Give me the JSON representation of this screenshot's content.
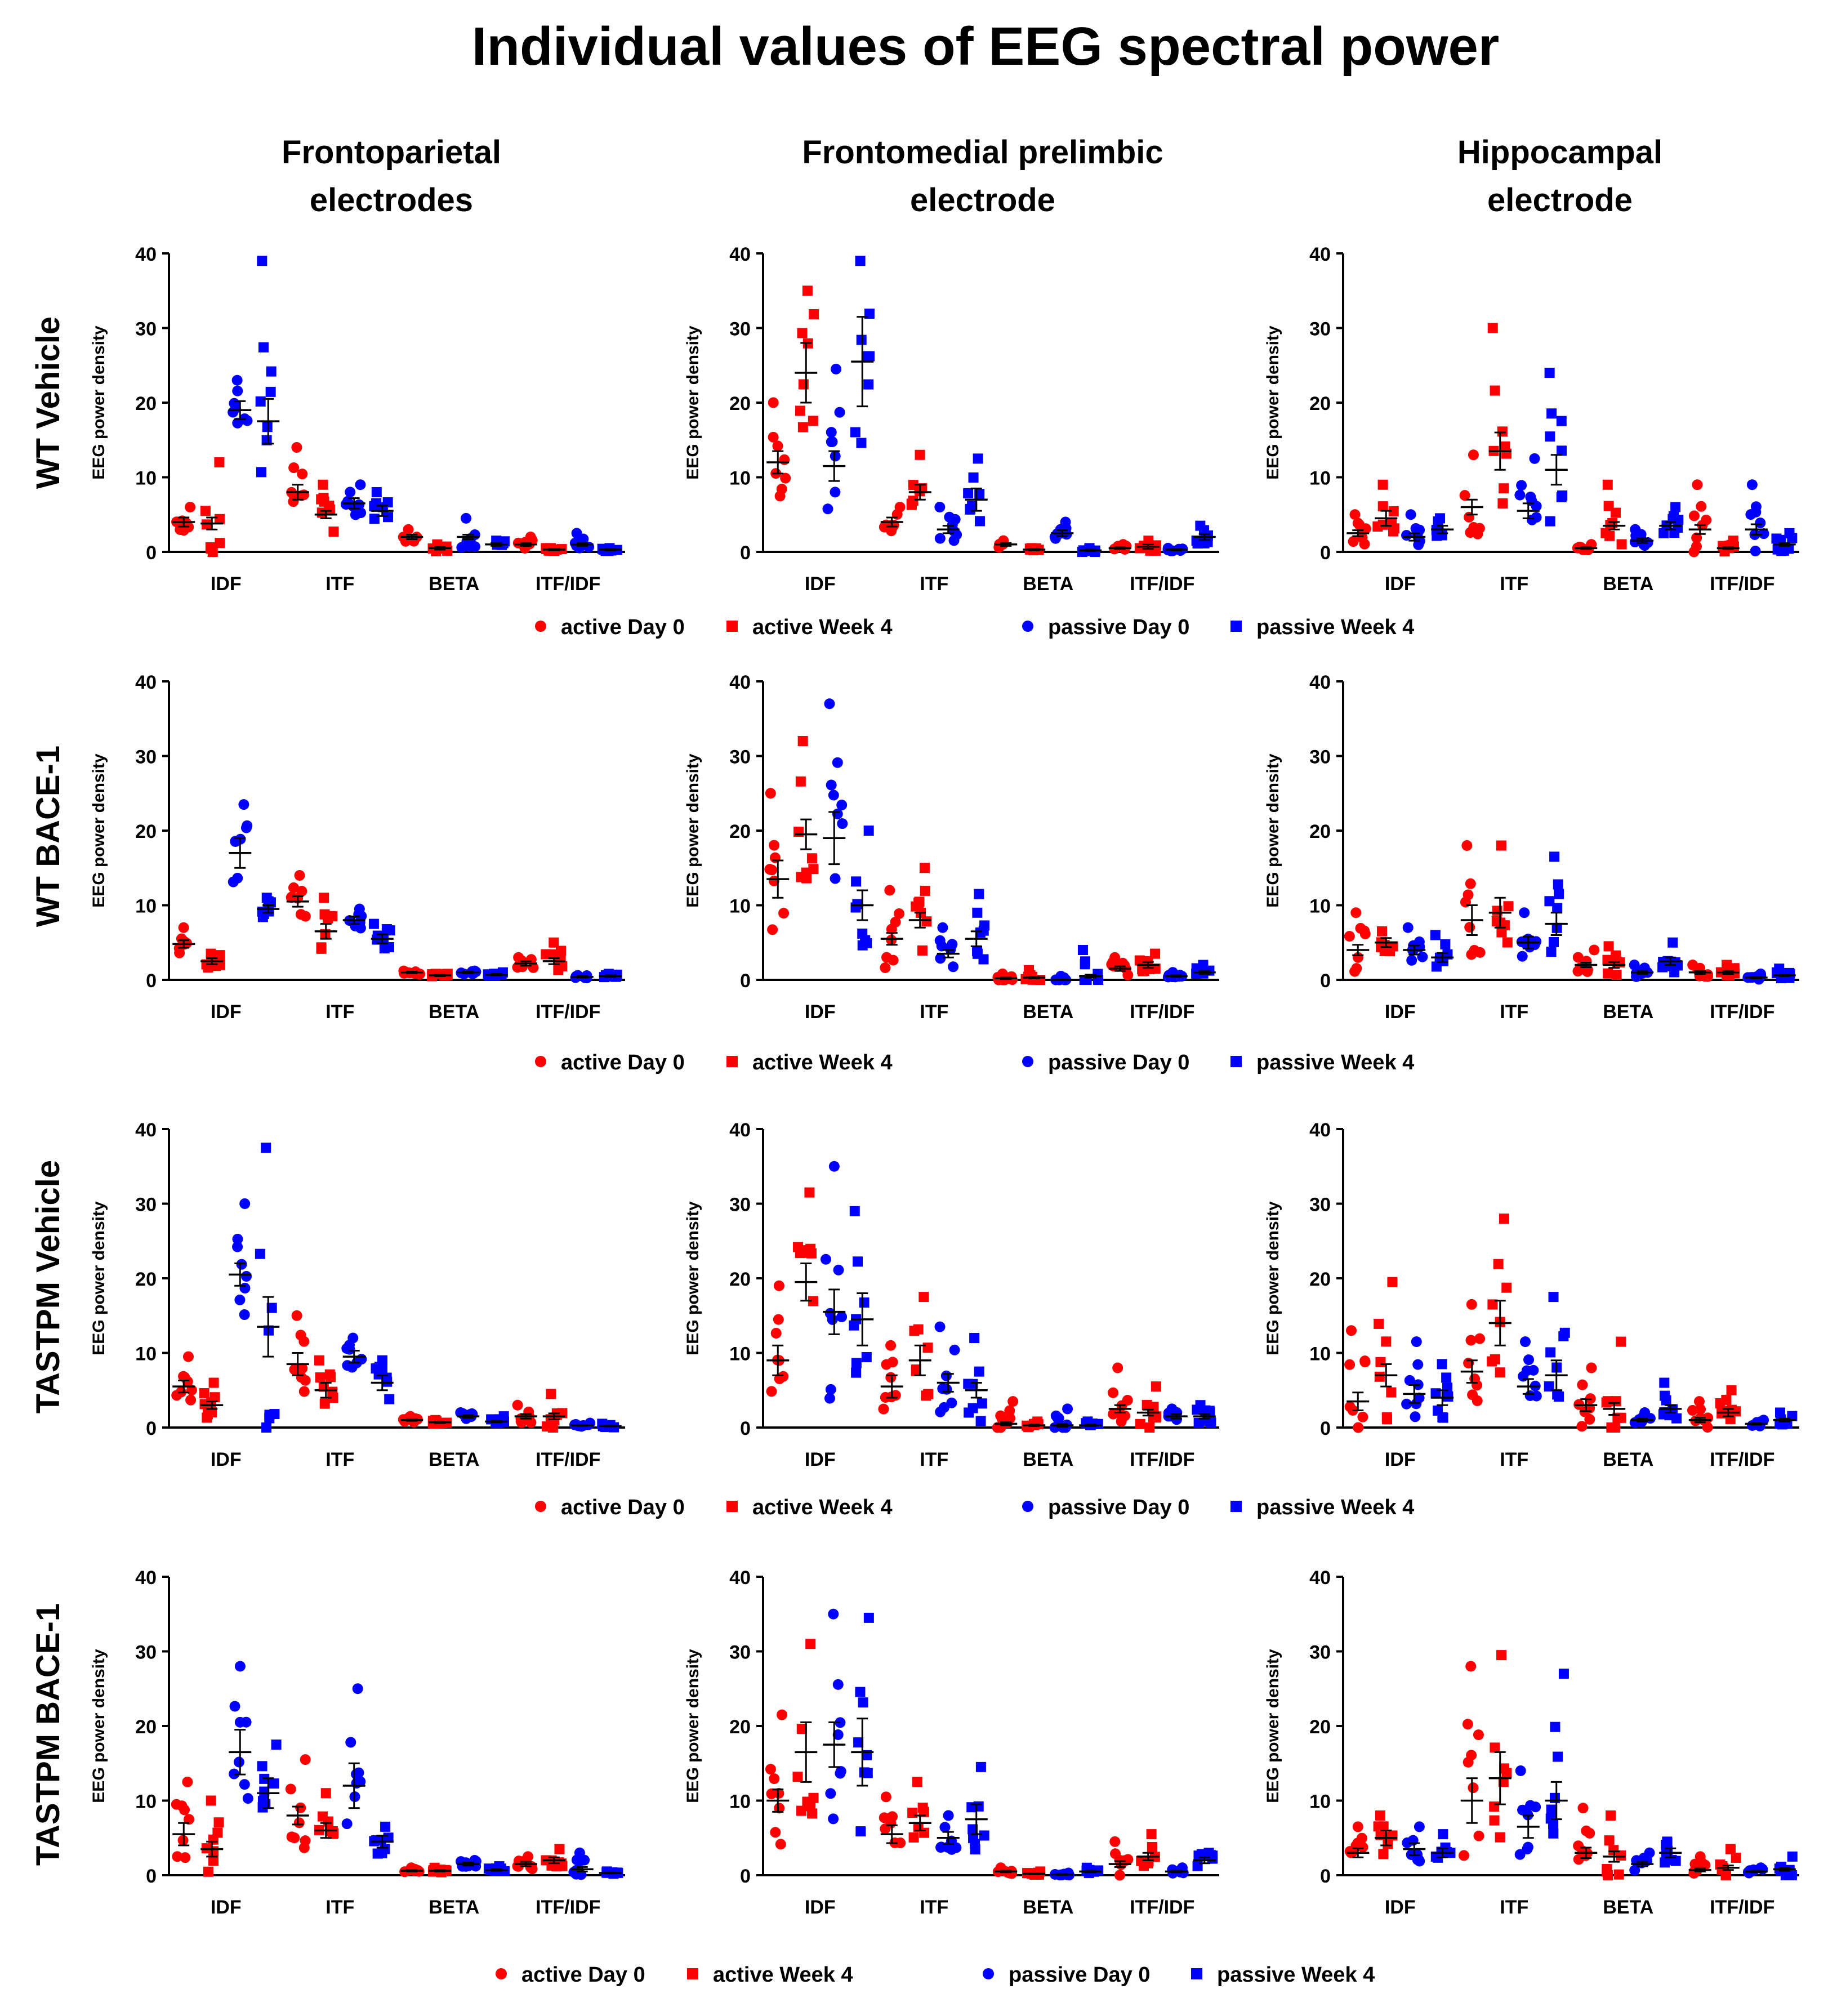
{
  "title": "Individual values of EEG spectral power",
  "colors": {
    "active": "#ff0000",
    "passive": "#0000ff",
    "mean_bar": "#000000",
    "axis": "#000000"
  },
  "column_headers": [
    {
      "line1": "Frontoparietal",
      "line2": "electrodes"
    },
    {
      "line1": "Frontomedial prelimbic",
      "line2": "electrode"
    },
    {
      "line1": "Hippocampal",
      "line2": "electrode"
    }
  ],
  "row_labels": [
    "WT Vehicle",
    "WT BACE-1",
    "TASTPM Vehicle",
    "TASTPM BACE-1"
  ],
  "legend": {
    "items": [
      {
        "label": "active Day 0",
        "marker": "circle",
        "color": "#ff0000"
      },
      {
        "label": "active Week 4",
        "marker": "square",
        "color": "#ff0000"
      },
      {
        "label": "passive Day 0",
        "marker": "circle",
        "color": "#0000ff"
      },
      {
        "label": "passive Week 4",
        "marker": "square",
        "color": "#0000ff"
      }
    ]
  },
  "chart_data": {
    "type": "scatter",
    "subtype": "dot-plot with mean ± SEM",
    "ylabel": "EEG power density",
    "ylim": [
      0,
      40
    ],
    "yticks": [
      0,
      10,
      20,
      30,
      40
    ],
    "categories": [
      "IDF",
      "ITF",
      "BETA",
      "ITF/IDF"
    ],
    "groups": [
      "active Day 0",
      "active Week 4",
      "passive Day 0",
      "passive Week 4"
    ],
    "panels": [
      {
        "row": "WT Vehicle",
        "col": "Frontoparietal electrodes",
        "means": [
          [
            4,
            3.8,
            19,
            17.5
          ],
          [
            8,
            5,
            6.5,
            5.5
          ],
          [
            2,
            0.5,
            2,
            1
          ],
          [
            1,
            0.3,
            1,
            0.3
          ]
        ],
        "sem": [
          [
            0.6,
            0.8,
            1.2,
            3
          ],
          [
            1,
            0.5,
            0.7,
            0.7
          ],
          [
            0.3,
            0.2,
            0.3,
            0.2
          ],
          [
            0.2,
            0.1,
            0.2,
            0.1
          ]
        ],
        "max": [
          [
            6,
            12,
            23,
            39
          ],
          [
            14,
            9,
            9,
            8
          ],
          [
            3,
            1,
            4.5,
            1.5
          ],
          [
            2,
            0.5,
            2.5,
            0.5
          ]
        ]
      },
      {
        "row": "WT Vehicle",
        "col": "Frontomedial prelimbic electrode",
        "means": [
          [
            12,
            24,
            11.5,
            25.5
          ],
          [
            4,
            8,
            3,
            7
          ],
          [
            1,
            0.3,
            2.5,
            0.2
          ],
          [
            0.5,
            0.7,
            0.3,
            2
          ]
        ],
        "sem": [
          [
            1.5,
            4,
            2,
            6
          ],
          [
            0.6,
            1,
            0.5,
            1.5
          ],
          [
            0.2,
            0.1,
            0.4,
            0.1
          ],
          [
            0.1,
            0.3,
            0.1,
            0.4
          ]
        ],
        "max": [
          [
            20,
            35,
            24.5,
            39
          ],
          [
            6,
            13,
            6,
            12.5
          ],
          [
            1.5,
            0.5,
            4,
            0.5
          ],
          [
            1,
            1.5,
            0.5,
            3.5
          ]
        ]
      },
      {
        "row": "WT Vehicle",
        "col": "Hippocampal electrode",
        "means": [
          [
            2.5,
            4.5,
            2,
            3
          ],
          [
            6,
            13.5,
            5.5,
            11
          ],
          [
            0.5,
            3.5,
            1.5,
            3.5
          ],
          [
            3,
            0.5,
            3,
            1
          ]
        ],
        "sem": [
          [
            0.4,
            1,
            0.5,
            0.5
          ],
          [
            1,
            2.5,
            1,
            2
          ],
          [
            0.1,
            0.5,
            0.3,
            0.5
          ],
          [
            0.6,
            0.1,
            0.7,
            0.2
          ]
        ],
        "max": [
          [
            5,
            9,
            5,
            4.5
          ],
          [
            13,
            30,
            12.5,
            24
          ],
          [
            1,
            9,
            3,
            6
          ],
          [
            9,
            1.5,
            9,
            2.5
          ]
        ]
      },
      {
        "row": "WT BACE-1",
        "col": "Frontoparietal electrodes",
        "means": [
          [
            4.8,
            2.5,
            17,
            9.5
          ],
          [
            10.5,
            6.5,
            8,
            5.5
          ],
          [
            1,
            0.6,
            1,
            0.7
          ],
          [
            2.2,
            2.5,
            0.4,
            0.5
          ]
        ],
        "sem": [
          [
            0.5,
            0.4,
            2,
            0.5
          ],
          [
            0.7,
            1,
            0.5,
            0.6
          ],
          [
            0.1,
            0.1,
            0.1,
            0.1
          ],
          [
            0.3,
            0.4,
            0.1,
            0.1
          ]
        ],
        "max": [
          [
            7,
            3.5,
            23.5,
            11
          ],
          [
            14,
            11,
            9.5,
            7.5
          ],
          [
            1.2,
            0.8,
            1.2,
            1
          ],
          [
            3,
            5,
            0.6,
            0.8
          ]
        ]
      },
      {
        "row": "WT BACE-1",
        "col": "Frontomedial prelimbic electrode",
        "means": [
          [
            13.5,
            19.5,
            19,
            10
          ],
          [
            5.5,
            8,
            3.5,
            5.5
          ],
          [
            0.2,
            0.3,
            0,
            0.5
          ],
          [
            1.5,
            2,
            0.5,
            1
          ]
        ],
        "sem": [
          [
            2.5,
            2,
            3.5,
            2
          ],
          [
            0.8,
            1,
            0.5,
            1
          ],
          [
            0.1,
            0.1,
            0.05,
            0.2
          ],
          [
            0.3,
            0.4,
            0.1,
            0.2
          ]
        ],
        "max": [
          [
            25,
            32,
            37,
            20
          ],
          [
            12,
            15,
            7,
            11.5
          ],
          [
            0.8,
            1.3,
            0.5,
            4
          ],
          [
            3,
            3.5,
            1,
            2
          ]
        ]
      },
      {
        "row": "WT BACE-1",
        "col": "Hippocampal electrode",
        "means": [
          [
            4,
            5,
            4,
            3
          ],
          [
            8,
            9,
            5,
            7.5
          ],
          [
            2,
            2,
            1,
            2.5
          ],
          [
            1,
            1,
            0.3,
            0.6
          ]
        ],
        "sem": [
          [
            0.7,
            0.6,
            0.6,
            0.6
          ],
          [
            2,
            2,
            0.8,
            1.5
          ],
          [
            0.3,
            0.4,
            0.2,
            0.5
          ],
          [
            0.2,
            0.2,
            0.1,
            0.1
          ]
        ],
        "max": [
          [
            9,
            6.5,
            7,
            6
          ],
          [
            18,
            18,
            9,
            16.5
          ],
          [
            4,
            4.5,
            2,
            5
          ],
          [
            2,
            2,
            0.8,
            1.5
          ]
        ]
      },
      {
        "row": "TASTPM Vehicle",
        "col": "Frontoparietal electrodes",
        "means": [
          [
            5.5,
            3,
            20.5,
            13.5
          ],
          [
            8.5,
            5,
            9.5,
            6
          ],
          [
            1,
            0.7,
            1.5,
            0.8
          ],
          [
            1.5,
            1.5,
            0.3,
            0.2
          ]
        ],
        "sem": [
          [
            0.8,
            0.5,
            1.5,
            4
          ],
          [
            1.5,
            1,
            0.8,
            1
          ],
          [
            0.1,
            0.1,
            0.2,
            0.1
          ],
          [
            0.3,
            0.4,
            0.05,
            0.05
          ]
        ],
        "max": [
          [
            9.5,
            6,
            30,
            37.5
          ],
          [
            15,
            9,
            12,
            9
          ],
          [
            1.5,
            1,
            2,
            1.5
          ],
          [
            3,
            4.5,
            0.6,
            0.5
          ]
        ]
      },
      {
        "row": "TASTPM Vehicle",
        "col": "Frontomedial prelimbic electrode",
        "means": [
          [
            9,
            19.5,
            15.5,
            14.5
          ],
          [
            5.5,
            9,
            6,
            5
          ],
          [
            0.5,
            0.3,
            0.3,
            0.3
          ],
          [
            2.5,
            2,
            1.5,
            1.5
          ]
        ],
        "sem": [
          [
            2,
            2.5,
            3,
            3.5
          ],
          [
            1.5,
            2,
            1.2,
            1
          ],
          [
            0.2,
            0.1,
            0.2,
            0.1
          ],
          [
            0.5,
            0.4,
            0.3,
            0.3
          ]
        ],
        "max": [
          [
            19,
            31.5,
            35,
            29
          ],
          [
            11,
            17.5,
            13.5,
            12
          ],
          [
            3.5,
            0.8,
            2.5,
            0.8
          ],
          [
            8,
            5.5,
            2.5,
            3
          ]
        ]
      },
      {
        "row": "TASTPM Vehicle",
        "col": "Hippocampal electrode",
        "means": [
          [
            3.5,
            7,
            4.5,
            4
          ],
          [
            7.5,
            14,
            5.5,
            7
          ],
          [
            3,
            2.5,
            1,
            2.5
          ],
          [
            1,
            2,
            0.5,
            1
          ]
        ],
        "sem": [
          [
            1.2,
            1.5,
            1.2,
            1
          ],
          [
            1.5,
            3,
            1,
            2
          ],
          [
            0.8,
            0.8,
            0.2,
            0.5
          ],
          [
            0.3,
            0.5,
            0.1,
            0.2
          ]
        ],
        "max": [
          [
            13,
            19.5,
            11.5,
            8.5
          ],
          [
            16.5,
            28,
            11.5,
            17.5
          ],
          [
            8,
            11.5,
            2,
            6
          ],
          [
            3.5,
            5,
            1,
            2
          ]
        ]
      },
      {
        "row": "TASTPM BACE-1",
        "col": "Frontoparietal electrodes",
        "means": [
          [
            5.5,
            3.5,
            16.5,
            11
          ],
          [
            8,
            6,
            12,
            4.5
          ],
          [
            0.6,
            0.6,
            1.5,
            0.7
          ],
          [
            1.5,
            2,
            0.8,
            0.3
          ]
        ],
        "sem": [
          [
            1.5,
            1,
            3,
            2
          ],
          [
            1.2,
            1,
            3,
            0.8
          ],
          [
            0.1,
            0.1,
            0.2,
            0.1
          ],
          [
            0.3,
            0.4,
            0.3,
            0.05
          ]
        ],
        "max": [
          [
            12.5,
            10,
            28,
            17.5
          ],
          [
            15.5,
            11,
            25,
            6.5
          ],
          [
            1,
            1,
            2,
            1.2
          ],
          [
            2.5,
            3.5,
            3,
            0.5
          ]
        ]
      },
      {
        "row": "TASTPM BACE-1",
        "col": "Frontomedial prelimbic electrode",
        "means": [
          [
            10,
            16.5,
            17.5,
            16.5
          ],
          [
            5.5,
            7,
            5,
            7.5
          ],
          [
            0.5,
            0.2,
            0.1,
            0.5
          ],
          [
            1.5,
            2.5,
            0.5,
            2
          ]
        ],
        "sem": [
          [
            1.5,
            4,
            3,
            4.5
          ],
          [
            1.2,
            1,
            0.8,
            2
          ],
          [
            0.1,
            0.05,
            0.05,
            0.1
          ],
          [
            0.4,
            0.5,
            0.1,
            0.4
          ]
        ],
        "max": [
          [
            21.5,
            31,
            35,
            34.5
          ],
          [
            10.5,
            12.5,
            8,
            14.5
          ],
          [
            1,
            0.5,
            0.3,
            1
          ],
          [
            4.5,
            5.5,
            1,
            3
          ]
        ]
      },
      {
        "row": "TASTPM BACE-1",
        "col": "Hippocampal electrode",
        "means": [
          [
            3,
            5,
            3.5,
            3
          ],
          [
            10,
            13,
            6.5,
            10
          ],
          [
            3,
            2.5,
            1.5,
            3
          ],
          [
            0.7,
            1,
            0.5,
            0.8
          ]
        ],
        "sem": [
          [
            0.6,
            1,
            0.8,
            0.6
          ],
          [
            3,
            3.5,
            1.5,
            2.5
          ],
          [
            0.7,
            0.7,
            0.3,
            0.6
          ],
          [
            0.2,
            0.3,
            0.1,
            0.2
          ]
        ],
        "max": [
          [
            6.5,
            8,
            6.5,
            5.5
          ],
          [
            28,
            29.5,
            14,
            27
          ],
          [
            9,
            8,
            3,
            4.5
          ],
          [
            2.5,
            3.5,
            1,
            2.5
          ]
        ]
      }
    ]
  }
}
